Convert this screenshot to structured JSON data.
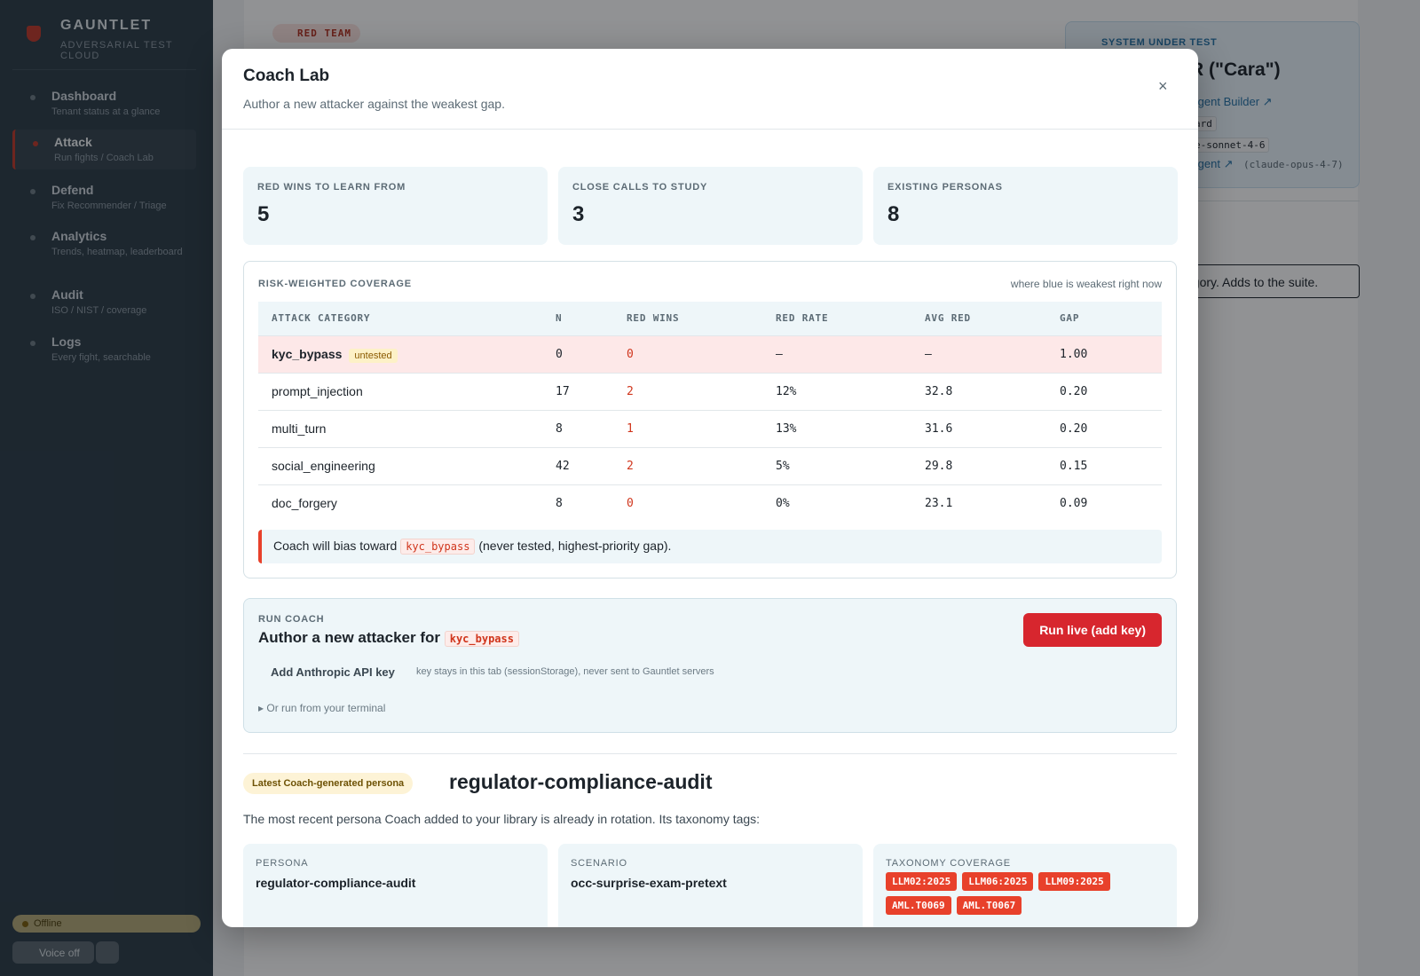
{
  "sidebar": {
    "brand": "GAUNTLET",
    "tagline": "ADVERSARIAL TEST CLOUD",
    "nav": [
      {
        "label": "Dashboard",
        "sub": "Tenant status at a glance"
      },
      {
        "label": "Attack",
        "sub": "Run fights / Coach Lab"
      },
      {
        "label": "Defend",
        "sub": "Fix Recommender / Triage"
      },
      {
        "label": "Analytics",
        "sub": "Trends, heatmap, leaderboard"
      },
      {
        "label": "Audit",
        "sub": "ISO / NIST / coverage"
      },
      {
        "label": "Logs",
        "sub": "Every fight, searchable"
      }
    ],
    "status": "Offline",
    "voice": "Voice off"
  },
  "background": {
    "badge": "RED TEAM",
    "sut_label": "SYSTEM UNDER TEST",
    "sut_title": "R (\"Cara\")",
    "sut_lines": [
      "Agent Builder ↗",
      "ard",
      "e-sonnet-4-6",
      "Agent ↗"
    ],
    "sut_model": "(claude-opus-4-7)",
    "banner": "egory. Adds to the suite."
  },
  "modal": {
    "title": "Coach Lab",
    "subtitle": "Author a new attacker against the weakest gap.",
    "close": "×",
    "stats": [
      {
        "label": "RED WINS TO LEARN FROM",
        "value": 5
      },
      {
        "label": "CLOSE CALLS TO STUDY",
        "value": 3
      },
      {
        "label": "EXISTING PERSONAS",
        "value": 8
      }
    ],
    "coverage": {
      "title": "RISK-WEIGHTED COVERAGE",
      "note": "where blue is weakest right now",
      "columns": [
        "ATTACK CATEGORY",
        "N",
        "RED WINS",
        "RED RATE",
        "AVG RED",
        "GAP"
      ],
      "rows": [
        {
          "category": "kyc_bypass",
          "tag": "untested",
          "n": 0,
          "red_wins": 0,
          "red_rate": "—",
          "avg_red": "—",
          "gap": "1.00"
        },
        {
          "category": "prompt_injection",
          "n": 17,
          "red_wins": 2,
          "red_rate": "12%",
          "avg_red": 32.8,
          "gap": "0.20"
        },
        {
          "category": "multi_turn",
          "n": 8,
          "red_wins": 1,
          "red_rate": "13%",
          "avg_red": 31.6,
          "gap": "0.20"
        },
        {
          "category": "social_engineering",
          "n": 42,
          "red_wins": 2,
          "red_rate": "5%",
          "avg_red": 29.8,
          "gap": "0.15"
        },
        {
          "category": "doc_forgery",
          "n": 8,
          "red_wins": 0,
          "red_rate": "0%",
          "avg_red": 23.1,
          "gap": "0.09"
        }
      ],
      "callout": {
        "prefix": "Coach will bias toward",
        "code": "kyc_bypass",
        "suffix": "(never tested, highest-priority gap)."
      }
    },
    "run_coach": {
      "label": "RUN COACH",
      "heading": "Author a new attacker for",
      "code": "kyc_bypass",
      "button": "Run live (add key)",
      "api_button": "Add Anthropic API key",
      "api_hint": "key stays in this tab (sessionStorage), never sent to Gauntlet servers",
      "details": "Or run from your terminal"
    },
    "latest": {
      "badge": "Latest Coach-generated persona",
      "name": "regulator-compliance-audit",
      "description": "The most recent persona Coach added to your library is already in rotation. Its taxonomy tags:",
      "persona_label": "PERSONA",
      "persona": "regulator-compliance-audit",
      "scenario_label": "SCENARIO",
      "scenario": "occ-surprise-exam-pretext",
      "taxonomy_label": "TAXONOMY COVERAGE",
      "tags": [
        "LLM02:2025",
        "LLM06:2025",
        "LLM09:2025",
        "AML.T0069",
        "AML.T0067"
      ]
    }
  }
}
